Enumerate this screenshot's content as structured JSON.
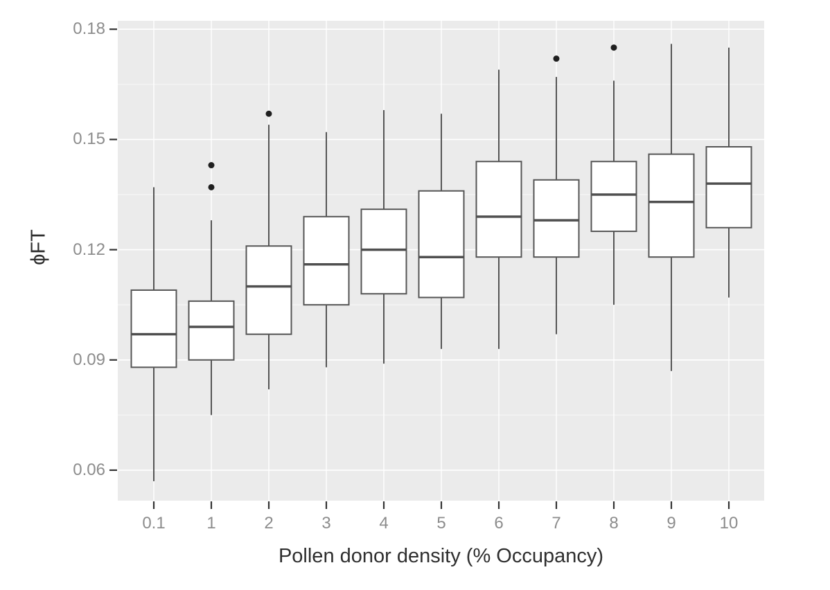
{
  "chart_data": {
    "type": "boxplot",
    "title": "",
    "xlabel": "Pollen donor density (% Occupancy)",
    "ylabel": "ϕFT",
    "categories": [
      "0.1",
      "1",
      "2",
      "3",
      "4",
      "5",
      "6",
      "7",
      "8",
      "9",
      "10"
    ],
    "boxes": [
      {
        "category": "0.1",
        "whisker_low": 0.057,
        "q1": 0.088,
        "median": 0.097,
        "q3": 0.109,
        "whisker_high": 0.137,
        "outliers": []
      },
      {
        "category": "1",
        "whisker_low": 0.075,
        "q1": 0.09,
        "median": 0.099,
        "q3": 0.106,
        "whisker_high": 0.128,
        "outliers": [
          0.137,
          0.143
        ]
      },
      {
        "category": "2",
        "whisker_low": 0.082,
        "q1": 0.097,
        "median": 0.11,
        "q3": 0.121,
        "whisker_high": 0.154,
        "outliers": [
          0.157
        ]
      },
      {
        "category": "3",
        "whisker_low": 0.088,
        "q1": 0.105,
        "median": 0.116,
        "q3": 0.129,
        "whisker_high": 0.152,
        "outliers": []
      },
      {
        "category": "4",
        "whisker_low": 0.089,
        "q1": 0.108,
        "median": 0.12,
        "q3": 0.131,
        "whisker_high": 0.158,
        "outliers": []
      },
      {
        "category": "5",
        "whisker_low": 0.093,
        "q1": 0.107,
        "median": 0.118,
        "q3": 0.136,
        "whisker_high": 0.157,
        "outliers": []
      },
      {
        "category": "6",
        "whisker_low": 0.093,
        "q1": 0.118,
        "median": 0.129,
        "q3": 0.144,
        "whisker_high": 0.169,
        "outliers": []
      },
      {
        "category": "7",
        "whisker_low": 0.097,
        "q1": 0.118,
        "median": 0.128,
        "q3": 0.139,
        "whisker_high": 0.167,
        "outliers": [
          0.172
        ]
      },
      {
        "category": "8",
        "whisker_low": 0.105,
        "q1": 0.125,
        "median": 0.135,
        "q3": 0.144,
        "whisker_high": 0.166,
        "outliers": [
          0.175
        ]
      },
      {
        "category": "9",
        "whisker_low": 0.087,
        "q1": 0.118,
        "median": 0.133,
        "q3": 0.146,
        "whisker_high": 0.176,
        "outliers": []
      },
      {
        "category": "10",
        "whisker_low": 0.107,
        "q1": 0.126,
        "median": 0.138,
        "q3": 0.148,
        "whisker_high": 0.175,
        "outliers": []
      }
    ],
    "y_ticks": [
      0.06,
      0.09,
      0.12,
      0.15,
      0.18
    ],
    "y_tick_labels": [
      "0.06",
      "0.09",
      "0.12",
      "0.15",
      "0.18"
    ],
    "y_minor_ticks": [
      0.075,
      0.105,
      0.135,
      0.165
    ],
    "ylim": [
      0.0517,
      0.1823
    ],
    "grid": "white major and minor horizontal lines, white vertical line per category, on grey panel",
    "legend": "none",
    "style": "ggplot2 theme_grey"
  },
  "colors": {
    "page_bg": "#FFFFFF",
    "panel_bg": "#EBEBEB",
    "grid_major": "#FFFFFF",
    "grid_minor": "#FFFFFF",
    "box_fill": "#FFFFFF",
    "box_stroke": "#555555",
    "median_stroke": "#4F4F4F",
    "whisker_stroke": "#555555",
    "outlier_fill": "#1F1F1F",
    "tick_mark": "#333333",
    "tick_label": "#8C8C8C",
    "axis_title": "#2E2E2E"
  }
}
